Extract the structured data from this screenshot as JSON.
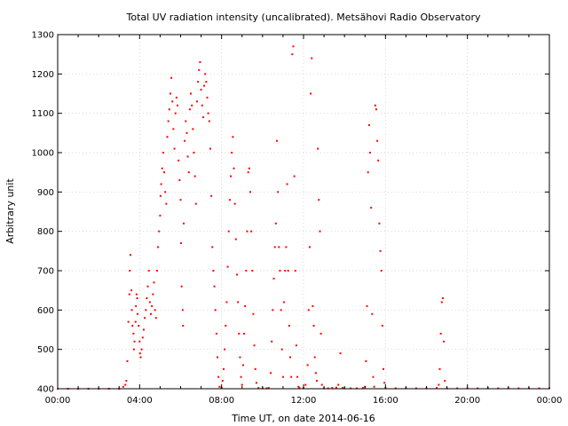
{
  "chart_data": {
    "type": "scatter",
    "title": "Total UV radiation intensity (uncalibrated). Metsähovi Radio Observatory",
    "xlabel": "Time UT, on date 2014-06-16",
    "ylabel": "Arbitrary unit",
    "xlim_hours": [
      0,
      24
    ],
    "ylim": [
      400,
      1300
    ],
    "x_tick_hours": [
      0,
      4,
      8,
      12,
      16,
      20,
      24
    ],
    "x_tick_labels": [
      "00:00",
      "04:00",
      "08:00",
      "12:00",
      "16:00",
      "20:00",
      "00:00"
    ],
    "y_ticks": [
      400,
      500,
      600,
      700,
      800,
      900,
      1000,
      1100,
      1200,
      1300
    ],
    "y_tick_labels": [
      "400",
      "500",
      "600",
      "700",
      "800",
      "900",
      "1000",
      "1100",
      "1200",
      "1300"
    ],
    "grid": true,
    "marker_color": "#ff0000",
    "series": [
      {
        "points": [
          [
            0.0,
            400
          ],
          [
            0.5,
            400
          ],
          [
            1.0,
            400
          ],
          [
            1.5,
            400
          ],
          [
            2.0,
            400
          ],
          [
            2.5,
            400
          ],
          [
            3.0,
            400
          ],
          [
            3.2,
            405
          ],
          [
            3.3,
            410
          ],
          [
            3.35,
            420
          ],
          [
            3.4,
            470
          ],
          [
            3.45,
            570
          ],
          [
            3.5,
            640
          ],
          [
            3.52,
            700
          ],
          [
            3.55,
            740
          ],
          [
            3.6,
            650
          ],
          [
            3.62,
            600
          ],
          [
            3.65,
            560
          ],
          [
            3.7,
            540
          ],
          [
            3.72,
            500
          ],
          [
            3.75,
            520
          ],
          [
            3.8,
            570
          ],
          [
            3.82,
            610
          ],
          [
            3.85,
            640
          ],
          [
            3.88,
            630
          ],
          [
            3.9,
            590
          ],
          [
            3.95,
            560
          ],
          [
            4.0,
            520
          ],
          [
            4.02,
            490
          ],
          [
            4.05,
            480
          ],
          [
            4.1,
            500
          ],
          [
            4.15,
            530
          ],
          [
            4.2,
            550
          ],
          [
            4.25,
            580
          ],
          [
            4.3,
            600
          ],
          [
            4.35,
            630
          ],
          [
            4.4,
            660
          ],
          [
            4.45,
            700
          ],
          [
            4.5,
            620
          ],
          [
            4.55,
            590
          ],
          [
            4.6,
            610
          ],
          [
            4.65,
            640
          ],
          [
            4.7,
            670
          ],
          [
            4.75,
            600
          ],
          [
            4.8,
            580
          ],
          [
            4.85,
            700
          ],
          [
            4.9,
            760
          ],
          [
            4.95,
            800
          ],
          [
            5.0,
            840
          ],
          [
            5.02,
            890
          ],
          [
            5.05,
            920
          ],
          [
            5.1,
            960
          ],
          [
            5.15,
            1000
          ],
          [
            5.2,
            950
          ],
          [
            5.25,
            900
          ],
          [
            5.3,
            870
          ],
          [
            5.35,
            1040
          ],
          [
            5.4,
            1080
          ],
          [
            5.45,
            1110
          ],
          [
            5.5,
            1150
          ],
          [
            5.55,
            1190
          ],
          [
            5.6,
            1130
          ],
          [
            5.65,
            1060
          ],
          [
            5.7,
            1010
          ],
          [
            5.75,
            1100
          ],
          [
            5.8,
            1140
          ],
          [
            5.85,
            1120
          ],
          [
            5.9,
            980
          ],
          [
            5.95,
            930
          ],
          [
            6.0,
            880
          ],
          [
            6.02,
            770
          ],
          [
            6.05,
            660
          ],
          [
            6.1,
            600
          ],
          [
            6.12,
            560
          ],
          [
            6.15,
            820
          ],
          [
            6.2,
            1030
          ],
          [
            6.25,
            1080
          ],
          [
            6.3,
            1050
          ],
          [
            6.35,
            990
          ],
          [
            6.4,
            950
          ],
          [
            6.45,
            1110
          ],
          [
            6.5,
            1150
          ],
          [
            6.55,
            1120
          ],
          [
            6.6,
            1060
          ],
          [
            6.65,
            1000
          ],
          [
            6.7,
            940
          ],
          [
            6.75,
            870
          ],
          [
            6.8,
            1130
          ],
          [
            6.85,
            1180
          ],
          [
            6.9,
            1210
          ],
          [
            6.95,
            1230
          ],
          [
            7.0,
            1160
          ],
          [
            7.05,
            1120
          ],
          [
            7.1,
            1090
          ],
          [
            7.15,
            1170
          ],
          [
            7.2,
            1200
          ],
          [
            7.25,
            1180
          ],
          [
            7.3,
            1140
          ],
          [
            7.35,
            1100
          ],
          [
            7.4,
            1080
          ],
          [
            7.45,
            1010
          ],
          [
            7.5,
            890
          ],
          [
            7.55,
            760
          ],
          [
            7.6,
            700
          ],
          [
            7.65,
            660
          ],
          [
            7.7,
            600
          ],
          [
            7.75,
            540
          ],
          [
            7.8,
            480
          ],
          [
            7.85,
            430
          ],
          [
            7.9,
            405
          ],
          [
            8.0,
            403
          ],
          [
            8.05,
            420
          ],
          [
            8.1,
            450
          ],
          [
            8.15,
            500
          ],
          [
            8.2,
            560
          ],
          [
            8.25,
            620
          ],
          [
            8.3,
            710
          ],
          [
            8.35,
            800
          ],
          [
            8.4,
            880
          ],
          [
            8.45,
            940
          ],
          [
            8.5,
            1000
          ],
          [
            8.55,
            1040
          ],
          [
            8.6,
            960
          ],
          [
            8.65,
            870
          ],
          [
            8.7,
            780
          ],
          [
            8.75,
            690
          ],
          [
            8.8,
            620
          ],
          [
            8.85,
            540
          ],
          [
            8.9,
            480
          ],
          [
            8.95,
            430
          ],
          [
            9.0,
            410
          ],
          [
            9.05,
            460
          ],
          [
            9.1,
            540
          ],
          [
            9.15,
            610
          ],
          [
            9.2,
            700
          ],
          [
            9.25,
            800
          ],
          [
            9.3,
            950
          ],
          [
            9.35,
            960
          ],
          [
            9.4,
            900
          ],
          [
            9.45,
            800
          ],
          [
            9.5,
            700
          ],
          [
            9.55,
            590
          ],
          [
            9.6,
            510
          ],
          [
            9.65,
            450
          ],
          [
            9.7,
            415
          ],
          [
            9.8,
            402
          ],
          [
            10.0,
            401
          ],
          [
            10.2,
            401
          ],
          [
            10.3,
            402
          ],
          [
            10.4,
            440
          ],
          [
            10.45,
            520
          ],
          [
            10.5,
            600
          ],
          [
            10.55,
            680
          ],
          [
            10.6,
            760
          ],
          [
            10.65,
            820
          ],
          [
            10.7,
            1030
          ],
          [
            10.75,
            900
          ],
          [
            10.8,
            760
          ],
          [
            10.85,
            700
          ],
          [
            10.9,
            600
          ],
          [
            10.95,
            500
          ],
          [
            11.0,
            430
          ],
          [
            11.05,
            620
          ],
          [
            11.1,
            700
          ],
          [
            11.15,
            760
          ],
          [
            11.2,
            920
          ],
          [
            11.25,
            700
          ],
          [
            11.3,
            560
          ],
          [
            11.35,
            480
          ],
          [
            11.4,
            430
          ],
          [
            11.45,
            1250
          ],
          [
            11.5,
            1270
          ],
          [
            11.55,
            940
          ],
          [
            11.6,
            700
          ],
          [
            11.65,
            510
          ],
          [
            11.7,
            430
          ],
          [
            11.75,
            405
          ],
          [
            11.8,
            402
          ],
          [
            12.0,
            402
          ],
          [
            12.1,
            410
          ],
          [
            12.2,
            460
          ],
          [
            12.25,
            600
          ],
          [
            12.3,
            760
          ],
          [
            12.35,
            1150
          ],
          [
            12.4,
            1240
          ],
          [
            12.45,
            610
          ],
          [
            12.5,
            560
          ],
          [
            12.55,
            480
          ],
          [
            12.6,
            440
          ],
          [
            12.65,
            420
          ],
          [
            12.7,
            1010
          ],
          [
            12.75,
            880
          ],
          [
            12.8,
            800
          ],
          [
            12.85,
            540
          ],
          [
            12.9,
            410
          ],
          [
            13.0,
            401
          ],
          [
            13.2,
            401
          ],
          [
            13.4,
            402
          ],
          [
            13.6,
            403
          ],
          [
            13.7,
            410
          ],
          [
            13.8,
            490
          ],
          [
            13.9,
            402
          ],
          [
            14.0,
            401
          ],
          [
            14.3,
            401
          ],
          [
            14.6,
            401
          ],
          [
            14.9,
            402
          ],
          [
            15.0,
            405
          ],
          [
            15.05,
            470
          ],
          [
            15.1,
            610
          ],
          [
            15.15,
            950
          ],
          [
            15.2,
            1070
          ],
          [
            15.25,
            1000
          ],
          [
            15.3,
            860
          ],
          [
            15.35,
            590
          ],
          [
            15.4,
            430
          ],
          [
            15.45,
            405
          ],
          [
            15.5,
            1120
          ],
          [
            15.55,
            1110
          ],
          [
            15.6,
            1030
          ],
          [
            15.65,
            980
          ],
          [
            15.7,
            820
          ],
          [
            15.75,
            750
          ],
          [
            15.8,
            700
          ],
          [
            15.85,
            560
          ],
          [
            15.9,
            450
          ],
          [
            15.95,
            415
          ],
          [
            16.0,
            402
          ],
          [
            16.5,
            401
          ],
          [
            17.0,
            401
          ],
          [
            17.5,
            401
          ],
          [
            18.0,
            401
          ],
          [
            18.5,
            402
          ],
          [
            18.6,
            410
          ],
          [
            18.65,
            450
          ],
          [
            18.7,
            540
          ],
          [
            18.75,
            620
          ],
          [
            18.8,
            630
          ],
          [
            18.85,
            520
          ],
          [
            18.9,
            420
          ],
          [
            19.0,
            401
          ],
          [
            19.5,
            401
          ],
          [
            20.0,
            401
          ],
          [
            20.5,
            401
          ],
          [
            21.0,
            401
          ],
          [
            21.5,
            401
          ],
          [
            22.0,
            401
          ],
          [
            22.5,
            401
          ],
          [
            23.0,
            401
          ],
          [
            23.5,
            401
          ],
          [
            24.0,
            401
          ]
        ]
      }
    ]
  }
}
